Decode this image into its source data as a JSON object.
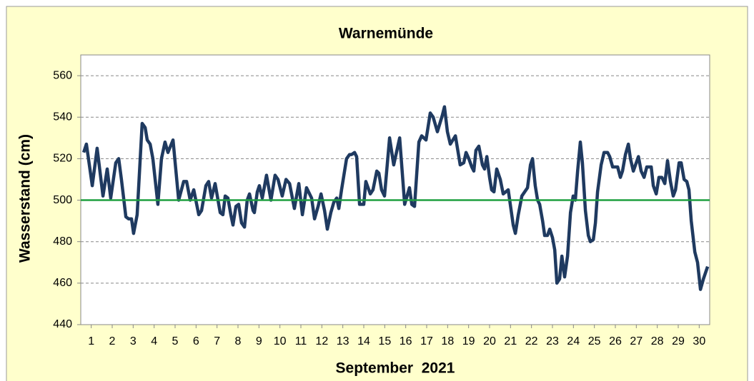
{
  "chart_data": {
    "type": "line",
    "title": "Warnemünde",
    "y_label": "Wasserstand (cm)",
    "x_label": "September  2021",
    "xlim": [
      1,
      31
    ],
    "ylim": [
      440,
      570
    ],
    "yticks": [
      440,
      460,
      480,
      500,
      520,
      540,
      560
    ],
    "xticks": [
      {
        "value": 1.5,
        "label": "1"
      },
      {
        "value": 2.5,
        "label": "2"
      },
      {
        "value": 3.5,
        "label": "3"
      },
      {
        "value": 4.5,
        "label": "4"
      },
      {
        "value": 5.5,
        "label": "5"
      },
      {
        "value": 6.5,
        "label": "6"
      },
      {
        "value": 7.5,
        "label": "7"
      },
      {
        "value": 8.5,
        "label": "8"
      },
      {
        "value": 9.5,
        "label": "9"
      },
      {
        "value": 10.5,
        "label": "10"
      },
      {
        "value": 11.5,
        "label": "11"
      },
      {
        "value": 12.5,
        "label": "12"
      },
      {
        "value": 13.5,
        "label": "13"
      },
      {
        "value": 14.5,
        "label": "14"
      },
      {
        "value": 15.5,
        "label": "15"
      },
      {
        "value": 16.5,
        "label": "16"
      },
      {
        "value": 17.5,
        "label": "17"
      },
      {
        "value": 18.5,
        "label": "18"
      },
      {
        "value": 19.5,
        "label": "19"
      },
      {
        "value": 20.5,
        "label": "20"
      },
      {
        "value": 21.5,
        "label": "21"
      },
      {
        "value": 22.5,
        "label": "22"
      },
      {
        "value": 23.5,
        "label": "23"
      },
      {
        "value": 24.5,
        "label": "24"
      },
      {
        "value": 25.5,
        "label": "25"
      },
      {
        "value": 26.5,
        "label": "26"
      },
      {
        "value": 27.5,
        "label": "27"
      },
      {
        "value": 28.5,
        "label": "28"
      },
      {
        "value": 29.5,
        "label": "29"
      },
      {
        "value": 30.5,
        "label": "30"
      }
    ],
    "grid": true,
    "reference_line": {
      "value": 500,
      "color": "#1fa040"
    },
    "series": [
      {
        "color": "#1f3a60",
        "x": [
          1.14,
          1.27,
          1.55,
          1.78,
          2.06,
          2.26,
          2.43,
          2.67,
          2.81,
          2.94,
          3.15,
          3.28,
          3.42,
          3.52,
          3.69,
          3.93,
          4.07,
          4.17,
          4.31,
          4.44,
          4.68,
          4.85,
          5.02,
          5.16,
          5.4,
          5.67,
          5.91,
          6.05,
          6.22,
          6.39,
          6.63,
          6.76,
          6.97,
          7.1,
          7.24,
          7.41,
          7.65,
          7.78,
          7.89,
          8.02,
          8.16,
          8.26,
          8.4,
          8.53,
          8.67,
          8.81,
          8.94,
          9.05,
          9.22,
          9.28,
          9.42,
          9.52,
          9.66,
          9.86,
          10.07,
          10.27,
          10.41,
          10.61,
          10.79,
          10.96,
          11.19,
          11.4,
          11.57,
          11.77,
          12.01,
          12.15,
          12.32,
          12.46,
          12.63,
          12.76,
          12.93,
          13.07,
          13.21,
          13.31,
          13.44,
          13.68,
          13.82,
          13.92,
          14.06,
          14.16,
          14.3,
          14.5,
          14.6,
          14.81,
          14.94,
          15.12,
          15.22,
          15.35,
          15.49,
          15.73,
          15.93,
          16.21,
          16.45,
          16.68,
          16.79,
          16.92,
          17.13,
          17.26,
          17.47,
          17.67,
          17.81,
          18.01,
          18.25,
          18.35,
          18.49,
          18.63,
          18.87,
          19.1,
          19.27,
          19.38,
          19.51,
          19.65,
          19.75,
          19.85,
          19.99,
          20.16,
          20.26,
          20.37,
          20.5,
          20.6,
          20.71,
          20.84,
          21.01,
          21.15,
          21.39,
          21.49,
          21.63,
          21.73,
          21.87,
          22.04,
          22.31,
          22.45,
          22.55,
          22.68,
          22.79,
          22.89,
          23.03,
          23.13,
          23.26,
          23.37,
          23.5,
          23.61,
          23.71,
          23.84,
          23.95,
          24.08,
          24.22,
          24.36,
          24.49,
          24.59,
          24.7,
          24.83,
          24.93,
          25.07,
          25.21,
          25.31,
          25.45,
          25.55,
          25.65,
          25.82,
          25.96,
          26.13,
          26.23,
          26.37,
          26.61,
          26.74,
          26.84,
          26.98,
          27.12,
          27.22,
          27.36,
          27.46,
          27.6,
          27.73,
          27.87,
          28.0,
          28.21,
          28.31,
          28.45,
          28.58,
          28.72,
          28.86,
          28.99,
          29.13,
          29.26,
          29.37,
          29.54,
          29.64,
          29.78,
          29.91,
          30.01,
          30.12,
          30.29,
          30.42,
          30.56,
          30.7,
          30.9
        ],
        "values": [
          523,
          527,
          507,
          525,
          502,
          515,
          501,
          518,
          520,
          510,
          492,
          491,
          491,
          484,
          493,
          537,
          535,
          529,
          527,
          520,
          498,
          520,
          528,
          523,
          529,
          500,
          509,
          509,
          500,
          505,
          493,
          495,
          507,
          509,
          501,
          508,
          494,
          493,
          502,
          501,
          493,
          488,
          497,
          498,
          489,
          487,
          500,
          503,
          495,
          494,
          504,
          507,
          501,
          512,
          500,
          512,
          510,
          502,
          510,
          508,
          496,
          508,
          493,
          506,
          501,
          491,
          497,
          503,
          495,
          486,
          494,
          499,
          501,
          496,
          505,
          520,
          522,
          522,
          523,
          521,
          498,
          498,
          509,
          503,
          505,
          514,
          513,
          505,
          502,
          530,
          517,
          530,
          498,
          506,
          498,
          497,
          528,
          531,
          529,
          542,
          540,
          533,
          541,
          545,
          533,
          527,
          531,
          517,
          518,
          523,
          520,
          516,
          514,
          524,
          526,
          517,
          515,
          521,
          511,
          505,
          504,
          515,
          510,
          503,
          505,
          498,
          488,
          484,
          493,
          502,
          506,
          517,
          520,
          507,
          500,
          498,
          490,
          483,
          483,
          486,
          482,
          476,
          460,
          462,
          473,
          463,
          473,
          494,
          502,
          500,
          514,
          528,
          518,
          495,
          483,
          480,
          481,
          489,
          504,
          517,
          523,
          523,
          521,
          516,
          516,
          511,
          514,
          522,
          527,
          520,
          514,
          517,
          521,
          514,
          511,
          516,
          516,
          507,
          503,
          511,
          511,
          508,
          519,
          509,
          502,
          505,
          518,
          518,
          510,
          509,
          505,
          490,
          475,
          470,
          457,
          462,
          468
        ]
      }
    ]
  }
}
